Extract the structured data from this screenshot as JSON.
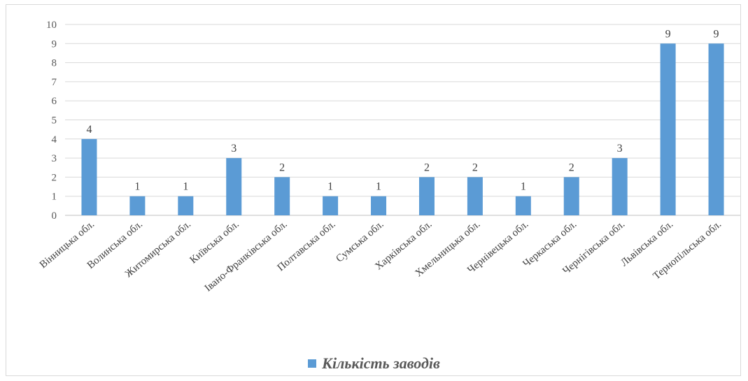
{
  "chart_data": {
    "type": "bar",
    "categories": [
      "Вінницька обл.",
      "Волинська обл.",
      "Житомирська обл.",
      "Київська обл.",
      "Івано-Франківська обл.",
      "Полтавська обл.",
      "Сумська обл.",
      "Харківська обл.",
      "Хмельницька обл.",
      "Чернівецька обл.",
      "Черкаська обл.",
      "Чернігівська обл.",
      "Львівська обл.",
      "Тернопільська обл."
    ],
    "series": [
      {
        "name": "Кількість заводів",
        "values": [
          4,
          1,
          1,
          3,
          2,
          1,
          1,
          2,
          2,
          1,
          2,
          3,
          9,
          9
        ]
      }
    ],
    "ylim": [
      0,
      10
    ],
    "yticks": [
      "0",
      "1",
      "2",
      "3",
      "4",
      "5",
      "6",
      "7",
      "8",
      "9",
      "10"
    ],
    "grid": true,
    "data_labels": true,
    "legend_position": "bottom",
    "colors": {
      "bar": "#5b9bd5",
      "grid": "#d9d9d9",
      "axis": "#bfbfbf"
    }
  }
}
